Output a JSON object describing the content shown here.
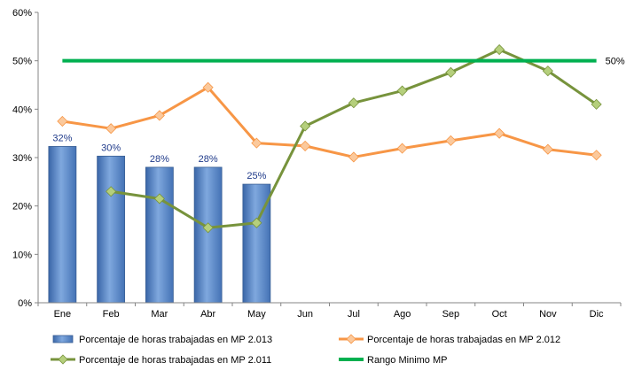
{
  "chart_data": {
    "type": "bar",
    "categories": [
      "Ene",
      "Feb",
      "Mar",
      "Abr",
      "May",
      "Jun",
      "Jul",
      "Ago",
      "Sep",
      "Oct",
      "Nov",
      "Dic"
    ],
    "ylim": [
      0,
      60
    ],
    "yticks": [
      0,
      10,
      20,
      30,
      40,
      50,
      60
    ],
    "ytick_labels": [
      "0%",
      "10%",
      "20%",
      "30%",
      "40%",
      "50%",
      "60%"
    ],
    "grid": false,
    "legend_position": "bottom",
    "series": [
      {
        "name": "Porcentaje de horas trabajadas en MP 2.013",
        "type": "bar",
        "color": "#4f81bd",
        "values": [
          32.3,
          30.3,
          28.0,
          28.0,
          24.5,
          null,
          null,
          null,
          null,
          null,
          null,
          null
        ],
        "labels": [
          "32%",
          "30%",
          "28%",
          "28%",
          "25%",
          null,
          null,
          null,
          null,
          null,
          null,
          null
        ]
      },
      {
        "name": "Porcentaje de horas trabajadas en MP 2.012",
        "type": "line",
        "color": "#f79646",
        "marker": "diamond",
        "values": [
          37.5,
          36.0,
          38.7,
          44.5,
          33.0,
          32.4,
          30.1,
          31.9,
          33.5,
          35.0,
          31.7,
          30.5
        ]
      },
      {
        "name": "Porcentaje de horas trabajadas en MP 2.011",
        "type": "line",
        "color": "#77933c",
        "marker": "diamond",
        "values": [
          null,
          23.0,
          21.5,
          15.5,
          16.5,
          36.5,
          41.3,
          43.8,
          47.6,
          52.3,
          47.9,
          41.0
        ]
      },
      {
        "name": "Rango Minimo MP",
        "type": "line",
        "color": "#00b050",
        "marker": "none",
        "values": [
          50,
          50,
          50,
          50,
          50,
          50,
          50,
          50,
          50,
          50,
          50,
          50
        ],
        "end_label": "50%"
      }
    ]
  }
}
